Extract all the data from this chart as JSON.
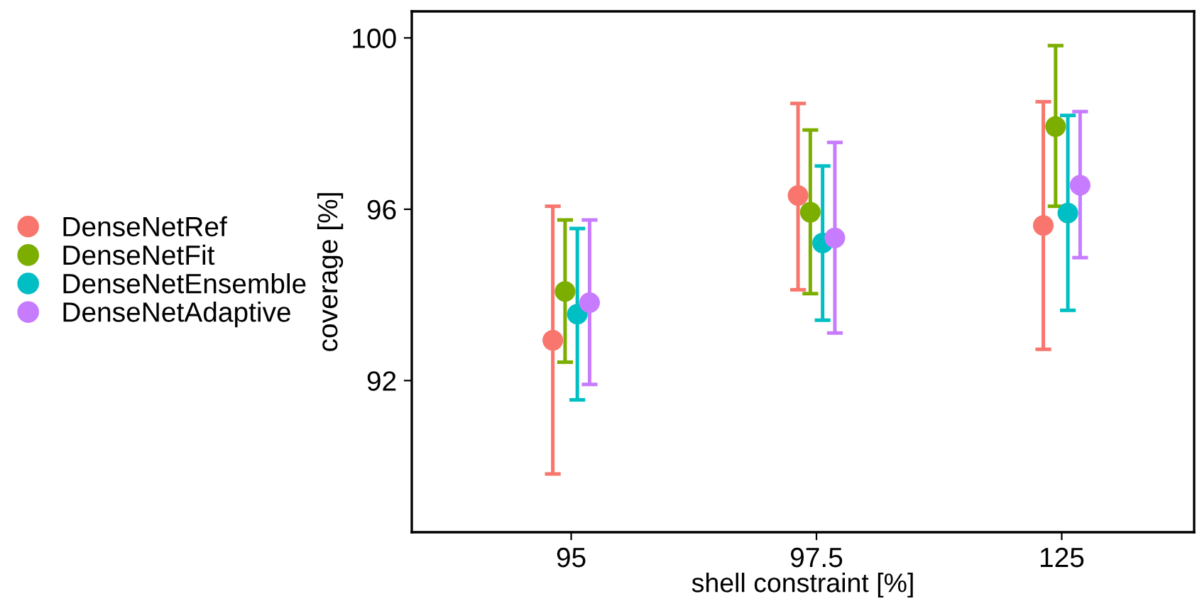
{
  "chart_data": {
    "type": "scatter",
    "xlabel": "shell constraint [%]",
    "ylabel": "coverage [%]",
    "categories": [
      "95",
      "97.5",
      "125"
    ],
    "series": [
      {
        "name": "DenseNetRef",
        "color": "#f8766d",
        "values": [
          92.94,
          96.32,
          95.62
        ],
        "errors": [
          [
            89.82,
            96.07
          ],
          [
            94.12,
            98.47
          ],
          [
            92.73,
            98.51
          ]
        ]
      },
      {
        "name": "DenseNetFit",
        "color": "#7cae00",
        "values": [
          94.08,
          95.93,
          97.93
        ],
        "errors": [
          [
            92.43,
            95.75
          ],
          [
            94.03,
            97.85
          ],
          [
            96.07,
            99.82
          ]
        ]
      },
      {
        "name": "DenseNetEnsemble",
        "color": "#00bfc4",
        "values": [
          93.55,
          95.21,
          95.91
        ],
        "errors": [
          [
            91.55,
            95.55
          ],
          [
            93.41,
            97.01
          ],
          [
            93.64,
            98.19
          ]
        ]
      },
      {
        "name": "DenseNetAdaptive",
        "color": "#c77cff",
        "values": [
          93.82,
          95.33,
          96.56
        ],
        "errors": [
          [
            91.91,
            95.75
          ],
          [
            93.11,
            97.56
          ],
          [
            94.87,
            98.28
          ]
        ]
      }
    ],
    "ylim": [
      88.46,
      100.62
    ],
    "yticks": [
      92,
      96,
      100
    ],
    "grid": false,
    "legend": "left",
    "marker": "circle"
  }
}
